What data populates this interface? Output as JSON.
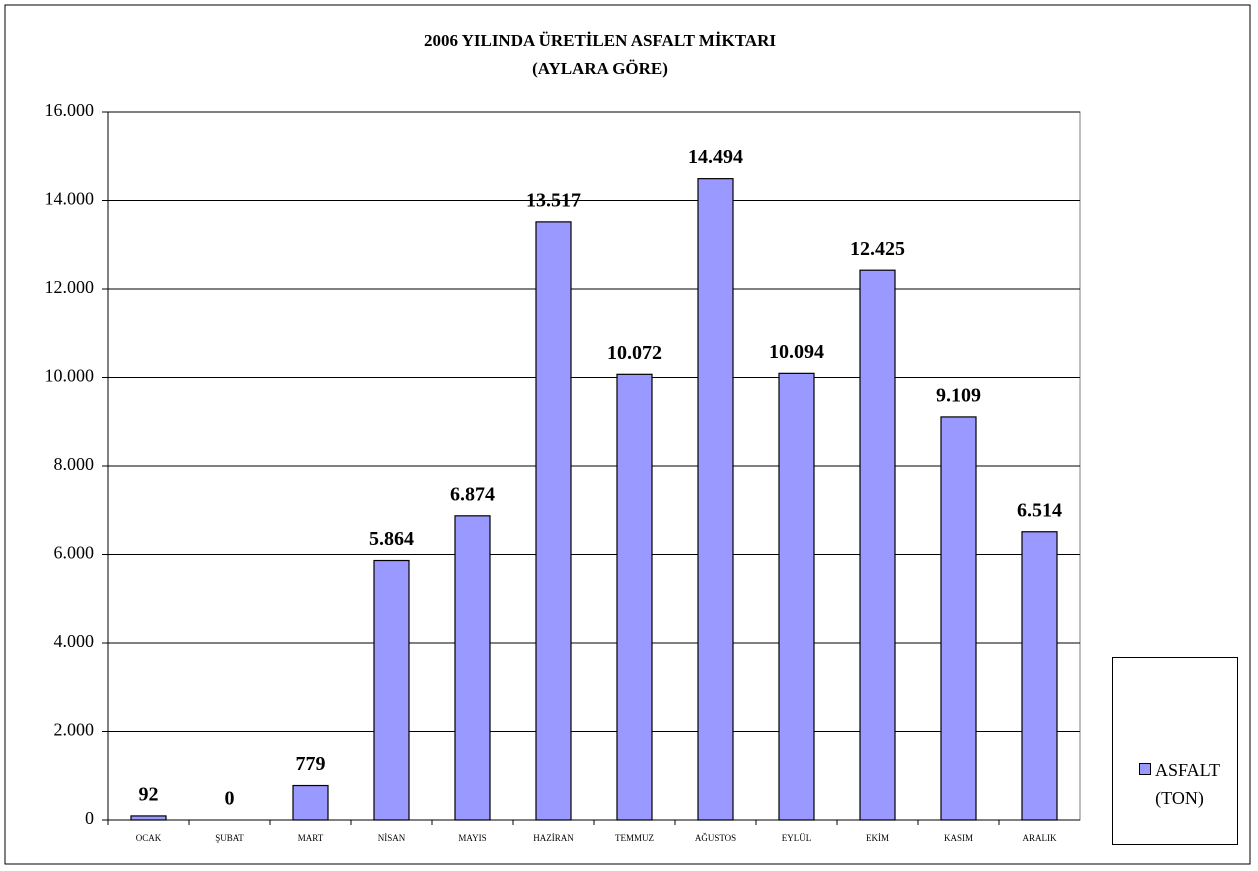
{
  "chart_data": {
    "type": "bar",
    "title": "2006 YILINDA ÜRETİLEN ASFALT MİKTARI",
    "subtitle": "(AYLARA GÖRE)",
    "categories": [
      "OCAK",
      "ŞUBAT",
      "MART",
      "NİSAN",
      "MAYIS",
      "HAZİRAN",
      "TEMMUZ",
      "AĞUSTOS",
      "EYLÜL",
      "EKİM",
      "KASIM",
      "ARALIK"
    ],
    "series": [
      {
        "name": "ASFALT (TON)",
        "color": "#9999ff",
        "values": [
          92,
          0,
          779,
          5864,
          6874,
          13517,
          10072,
          14494,
          10094,
          12425,
          9109,
          6514
        ],
        "value_labels": [
          "92",
          "0",
          "779",
          "5.864",
          "6.874",
          "13.517",
          "10.072",
          "14.494",
          "10.094",
          "12.425",
          "9.109",
          "6.514"
        ]
      }
    ],
    "ylim": [
      0,
      16000
    ],
    "yticks": [
      0,
      {
        "value": 2000,
        "label": "2.000"
      },
      {
        "value": 4000,
        "label": "4.000"
      },
      {
        "value": 6000,
        "label": "6.000"
      },
      {
        "value": 8000,
        "label": "8.000"
      },
      {
        "value": 10000,
        "label": "10.000"
      },
      {
        "value": 12000,
        "label": "12.000"
      },
      {
        "value": 14000,
        "label": "14.000"
      },
      {
        "value": 16000,
        "label": "16.000"
      }
    ],
    "grid": true,
    "legend": "right"
  }
}
